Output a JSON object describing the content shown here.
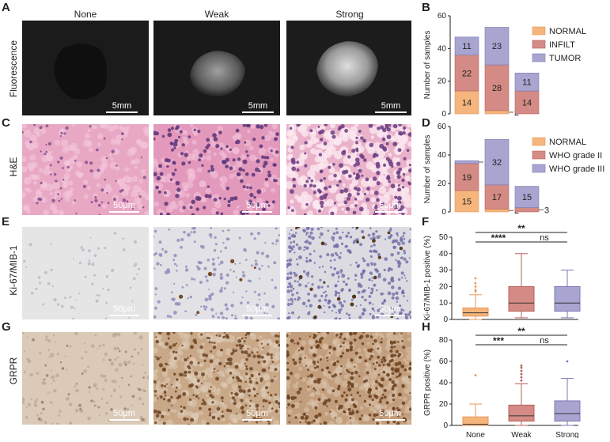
{
  "panel_letters": {
    "a": "A",
    "b": "B",
    "c": "C",
    "d": "D",
    "e": "E",
    "f": "F",
    "g": "G",
    "h": "H"
  },
  "column_headers": [
    "None",
    "Weak",
    "Strong"
  ],
  "row_labels": {
    "fluorescence": "Fluorescence",
    "he": "H&E",
    "ki67": "Ki-67/MIB-1",
    "grpr": "GRPR"
  },
  "scale_bars": {
    "fluorescence": "5mm",
    "micro": "50μm"
  },
  "colors": {
    "normal": "#f5b57c",
    "infilt": "#d48b85",
    "tumor": "#a8a5d1",
    "normal_edge": "#e8975a",
    "infilt_edge": "#b85f5a",
    "tumor_edge": "#7c78b3",
    "box_none": "#f5b57c",
    "box_weak": "#d48b85",
    "box_strong": "#a8a5d1"
  },
  "chart_data": [
    {
      "id": "B",
      "type": "bar",
      "stacked": true,
      "categories": [
        "None",
        "Weak",
        "Strong"
      ],
      "ylabel": "Number of samples",
      "ylim": [
        0,
        60
      ],
      "yticks": [
        0,
        20,
        40,
        60
      ],
      "legend_position": "right",
      "series": [
        {
          "name": "NORMAL",
          "values": [
            14,
            2,
            0
          ],
          "color_key": "normal"
        },
        {
          "name": "INFILT",
          "values": [
            22,
            28,
            14
          ],
          "color_key": "infilt"
        },
        {
          "name": "TUMOR",
          "values": [
            11,
            23,
            11
          ],
          "color_key": "tumor"
        }
      ],
      "labels": [
        [
          "14",
          "2",
          ""
        ],
        [
          "22",
          "28",
          "14"
        ],
        [
          "11",
          "23",
          "11"
        ]
      ]
    },
    {
      "id": "D",
      "type": "bar",
      "stacked": true,
      "categories": [
        "None",
        "Weak",
        "Strong"
      ],
      "ylabel": "Number of samples",
      "ylim": [
        0,
        60
      ],
      "yticks": [
        0,
        20,
        40,
        60
      ],
      "legend_position": "right",
      "series": [
        {
          "name": "NORMAL",
          "values": [
            15,
            2,
            0
          ],
          "color_key": "normal"
        },
        {
          "name": "WHO grade II",
          "values": [
            19,
            17,
            3
          ],
          "color_key": "infilt"
        },
        {
          "name": "WHO grade III",
          "values": [
            2,
            32,
            15
          ],
          "color_key": "tumor"
        }
      ],
      "labels": [
        [
          "15",
          "2",
          ""
        ],
        [
          "19",
          "17",
          "3"
        ],
        [
          "2",
          "32",
          "15"
        ]
      ]
    },
    {
      "id": "F",
      "type": "box",
      "categories": [
        "None",
        "Weak",
        "Strong"
      ],
      "ylabel": "Ki-67/MIB-1 positive (%)",
      "ylim": [
        0,
        50
      ],
      "yticks": [
        0,
        10,
        20,
        30,
        40,
        50
      ],
      "boxes": [
        {
          "min": 0,
          "q1": 2,
          "median": 4,
          "q3": 7,
          "max": 15,
          "outliers": [
            17,
            18,
            20,
            22,
            25
          ]
        },
        {
          "min": 1,
          "q1": 5,
          "median": 10,
          "q3": 20,
          "max": 40,
          "outliers": []
        },
        {
          "min": 1,
          "q1": 5,
          "median": 10,
          "q3": 20,
          "max": 30,
          "outliers": []
        }
      ],
      "significance": [
        {
          "from": 0,
          "to": 2,
          "label": "**"
        },
        {
          "from": 0,
          "to": 1,
          "label": "****"
        },
        {
          "from": 1,
          "to": 2,
          "label": "ns"
        }
      ]
    },
    {
      "id": "H",
      "type": "box",
      "categories": [
        "None",
        "Weak",
        "Strong"
      ],
      "ylabel": "GRPR positive (%)",
      "ylim": [
        0,
        80
      ],
      "yticks": [
        0,
        20,
        40,
        60,
        80
      ],
      "boxes": [
        {
          "min": 0,
          "q1": 0,
          "median": 1,
          "q3": 8,
          "max": 20,
          "outliers": [
            47
          ]
        },
        {
          "min": 0,
          "q1": 4,
          "median": 9,
          "q3": 19,
          "max": 39,
          "outliers": [
            42,
            45,
            48,
            51,
            54,
            56
          ]
        },
        {
          "min": 0,
          "q1": 4,
          "median": 11,
          "q3": 23,
          "max": 44,
          "outliers": [
            60
          ]
        }
      ],
      "significance": [
        {
          "from": 0,
          "to": 2,
          "label": "**"
        },
        {
          "from": 0,
          "to": 1,
          "label": "***"
        },
        {
          "from": 1,
          "to": 2,
          "label": "ns"
        }
      ]
    }
  ]
}
